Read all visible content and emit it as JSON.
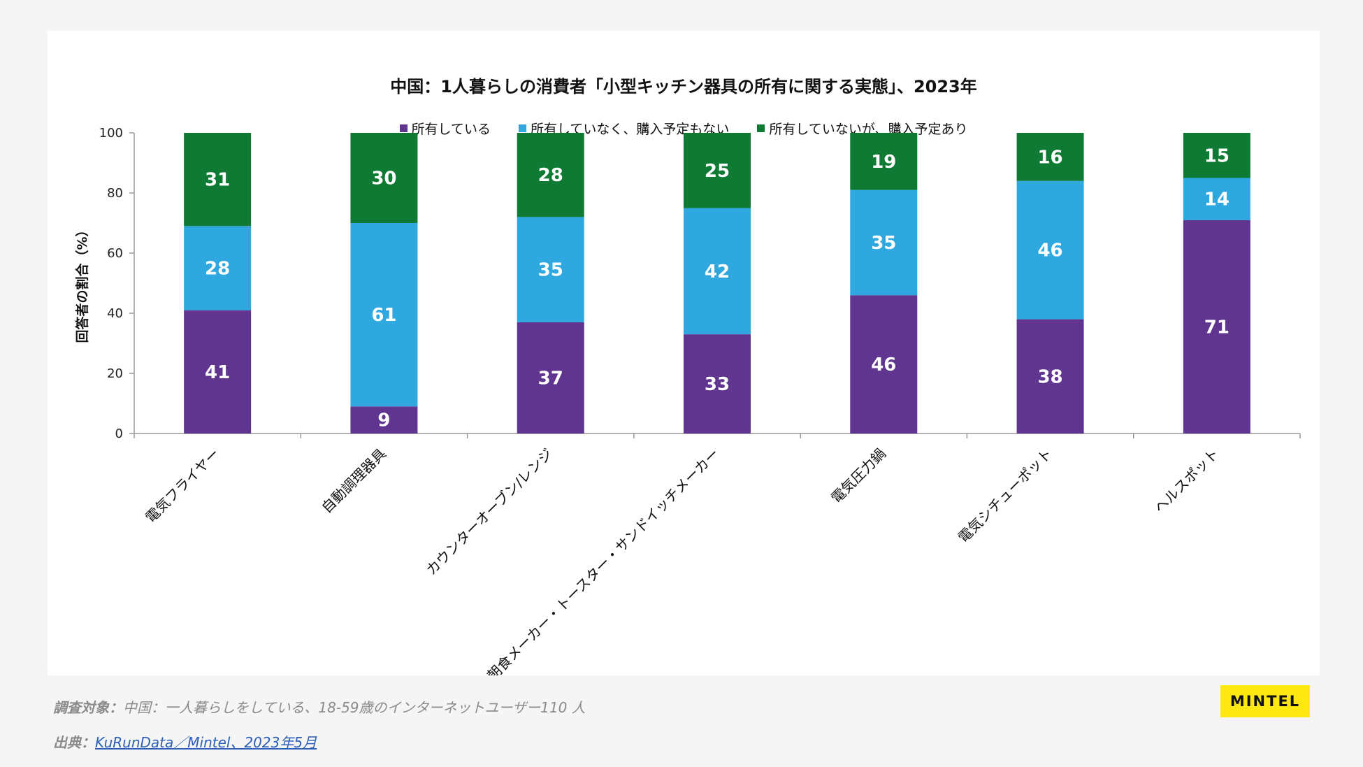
{
  "colors": {
    "owned": "#5f3590",
    "not_owned_no_plan": "#2fa8e0",
    "not_owned_plan": "#0f7a33",
    "axis": "#999999",
    "label": "#ffffff"
  },
  "chart_data": {
    "type": "bar",
    "stacked": true,
    "title": "中国：1人暮らしの消費者「小型キッチン器具の所有に関する実態」、2023年",
    "ylabel": "回答者の割合（%）",
    "xlabel": "",
    "ylim": [
      0,
      100
    ],
    "yticks": [
      "0",
      "20",
      "40",
      "60",
      "80",
      "100"
    ],
    "legend_position": "top-center",
    "categories": [
      "電気フライヤー",
      "自動調理器具",
      "カウンターオーブン/レンジ",
      "朝食メーカー・トースター・サンドイッチメーカー",
      "電気圧力鍋",
      "電気シチューポット",
      "ヘルスポット"
    ],
    "series": [
      {
        "name": "所有している",
        "color_key": "owned",
        "values": [
          41,
          9,
          37,
          33,
          46,
          38,
          71
        ]
      },
      {
        "name": "所有していなく、購入予定もない",
        "color_key": "not_owned_no_plan",
        "values": [
          28,
          61,
          35,
          42,
          35,
          46,
          14
        ]
      },
      {
        "name": "所有していないが、購入予定あり",
        "color_key": "not_owned_plan",
        "values": [
          31,
          30,
          28,
          25,
          19,
          16,
          15
        ]
      }
    ]
  },
  "footer": {
    "survey_label": "調査対象：",
    "survey_text": "中国：一人暮らしをしている、18-59歳のインターネットユーザー110 人",
    "source_label": "出典：",
    "source_text": "KuRunData／Mintel、2023年5月",
    "logo_text": "MINTEL"
  }
}
